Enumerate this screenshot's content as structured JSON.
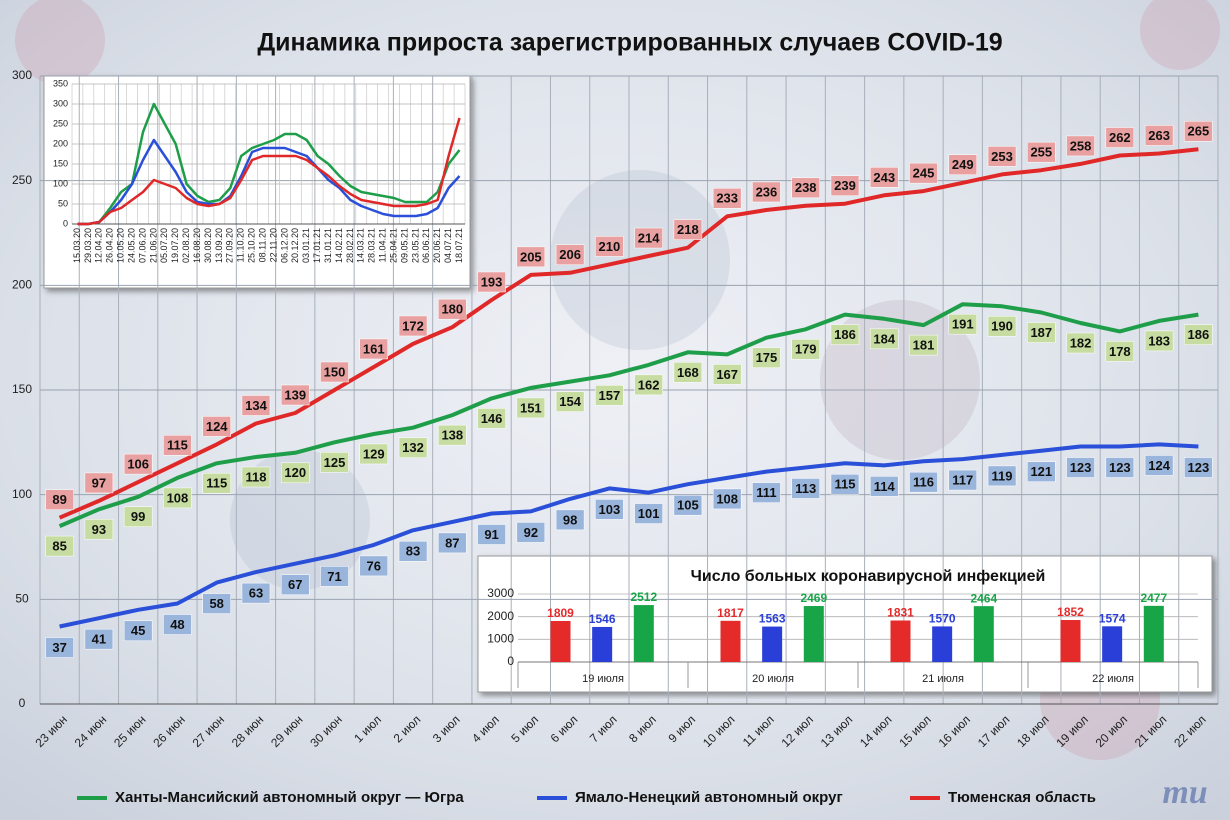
{
  "logo": "mu",
  "chart_data": [
    {
      "type": "line",
      "title": "Динамика прироста зарегистрированных случаев COVID-19",
      "categories": [
        "23 июн",
        "24 июн",
        "25 июн",
        "26 июн",
        "27 июн",
        "28 июн",
        "29 июн",
        "30 июн",
        "1 июл",
        "2 июл",
        "3 июл",
        "4 июл",
        "5 июл",
        "6 июл",
        "7 июл",
        "8 июл",
        "9 июл",
        "10 июл",
        "11 июл",
        "12 июл",
        "13 июл",
        "14 июл",
        "15 июл",
        "16 июл",
        "17 июл",
        "18 июл",
        "19 июл",
        "20 июл",
        "21 июл",
        "22 июл"
      ],
      "series": [
        {
          "name": "Ханты-Мансийский автономный округ — Югра",
          "color": "#1f9e4a",
          "values": [
            85,
            93,
            99,
            108,
            115,
            118,
            120,
            125,
            129,
            132,
            138,
            146,
            151,
            154,
            157,
            162,
            168,
            167,
            175,
            179,
            186,
            184,
            181,
            191,
            190,
            187,
            182,
            178,
            183,
            186
          ]
        },
        {
          "name": "Ямало-Ненецкий автономный округ",
          "color": "#2a4fd8",
          "values": [
            37,
            41,
            45,
            48,
            58,
            63,
            67,
            71,
            76,
            83,
            87,
            91,
            92,
            98,
            103,
            101,
            105,
            108,
            111,
            113,
            115,
            114,
            116,
            117,
            119,
            121,
            123,
            123,
            124,
            123
          ]
        },
        {
          "name": "Тюменская область",
          "color": "#e02828",
          "values": [
            89,
            97,
            106,
            115,
            124,
            134,
            139,
            150,
            161,
            172,
            180,
            193,
            205,
            206,
            210,
            214,
            218,
            233,
            236,
            238,
            239,
            243,
            245,
            249,
            253,
            255,
            258,
            262,
            263,
            265
          ]
        }
      ],
      "ylim": [
        0,
        300
      ],
      "yticks": [
        0,
        50,
        100,
        150,
        200,
        250,
        300
      ],
      "grid": true,
      "data_labels": true,
      "legend": "bottom"
    },
    {
      "type": "line",
      "categories": [
        "15.03.20",
        "29.03.20",
        "12.04.20",
        "26.04.20",
        "10.05.20",
        "24.05.20",
        "07.06.20",
        "21.06.20",
        "05.07.20",
        "19.07.20",
        "02.08.20",
        "16.08.20",
        "30.08.20",
        "13.09.20",
        "27.09.20",
        "11.10.20",
        "25.10.20",
        "08.11.20",
        "22.11.20",
        "06.12.20",
        "20.12.20",
        "03.01.21",
        "17.01.21",
        "31.01.21",
        "14.02.21",
        "28.02.21",
        "14.03.21",
        "28.03.21",
        "11.04.21",
        "25.04.21",
        "09.05.21",
        "23.05.21",
        "06.06.21",
        "20.06.21",
        "04.07.21",
        "18.07.21"
      ],
      "series": [
        {
          "color": "#1f9e4a",
          "values": [
            0,
            0,
            5,
            40,
            80,
            100,
            230,
            300,
            250,
            200,
            100,
            70,
            55,
            60,
            90,
            170,
            190,
            200,
            210,
            225,
            225,
            210,
            170,
            150,
            120,
            95,
            80,
            75,
            70,
            65,
            55,
            55,
            55,
            80,
            150,
            185
          ]
        },
        {
          "color": "#2a4fd8",
          "values": [
            0,
            0,
            5,
            30,
            60,
            100,
            160,
            210,
            170,
            130,
            80,
            55,
            50,
            50,
            70,
            120,
            180,
            190,
            190,
            190,
            180,
            170,
            140,
            110,
            90,
            60,
            45,
            35,
            25,
            20,
            20,
            20,
            25,
            40,
            90,
            120
          ]
        },
        {
          "color": "#e02828",
          "values": [
            0,
            0,
            5,
            30,
            40,
            60,
            80,
            110,
            100,
            90,
            65,
            50,
            45,
            50,
            65,
            110,
            160,
            170,
            170,
            170,
            170,
            160,
            140,
            120,
            95,
            75,
            60,
            55,
            50,
            45,
            45,
            45,
            50,
            60,
            170,
            265
          ]
        }
      ],
      "ylim": [
        0,
        350
      ],
      "yticks": [
        0,
        50,
        100,
        150,
        200,
        250,
        300,
        350
      ],
      "grid": true
    },
    {
      "type": "bar",
      "title": "Число больных коронавирусной  инфекцией",
      "categories": [
        "19 июля",
        "20 июля",
        "21 июля",
        "22 июля"
      ],
      "series": [
        {
          "color": "#e52a2a",
          "values": [
            1809,
            1817,
            1831,
            1852
          ]
        },
        {
          "color": "#2a3fd8",
          "values": [
            1546,
            1563,
            1570,
            1574
          ]
        },
        {
          "color": "#18a548",
          "values": [
            2512,
            2469,
            2464,
            2477
          ]
        }
      ],
      "ylim": [
        0,
        3000
      ],
      "yticks": [
        0,
        1000,
        2000,
        3000
      ],
      "grid": true,
      "data_labels": true
    }
  ]
}
